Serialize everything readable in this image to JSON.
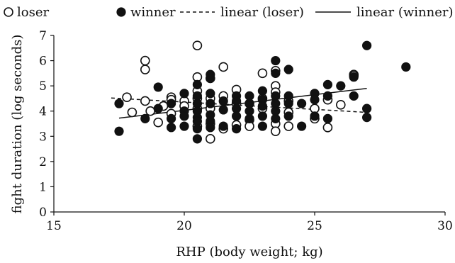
{
  "chart_data": {
    "type": "scatter",
    "xlabel": "RHP (body weight; kg)",
    "ylabel": "fight duration (log seconds)",
    "xlim": [
      15,
      30
    ],
    "ylim": [
      0,
      7
    ],
    "xticks": [
      "15",
      "20",
      "25",
      "30"
    ],
    "yticks": [
      "0",
      "1",
      "2",
      "3",
      "4",
      "5",
      "6",
      "7"
    ],
    "grid": false,
    "legend_position": "top",
    "legend": [
      {
        "label": "loser",
        "marker": "open-circle"
      },
      {
        "label": "winner",
        "marker": "filled-circle"
      },
      {
        "label": "linear (loser)",
        "marker": "dashed-line"
      },
      {
        "label": "linear (winner)",
        "marker": "solid-line"
      }
    ],
    "series": [
      {
        "name": "loser",
        "marker": "open-circle",
        "points": [
          [
            17.8,
            4.55
          ],
          [
            18.0,
            3.95
          ],
          [
            18.5,
            6.0
          ],
          [
            18.5,
            5.65
          ],
          [
            18.5,
            4.4
          ],
          [
            18.7,
            4.0
          ],
          [
            19.0,
            3.55
          ],
          [
            19.2,
            4.2
          ],
          [
            19.5,
            4.55
          ],
          [
            19.5,
            4.45
          ],
          [
            19.5,
            3.9
          ],
          [
            20.0,
            4.4
          ],
          [
            20.0,
            4.2
          ],
          [
            20.5,
            6.6
          ],
          [
            20.5,
            5.35
          ],
          [
            20.5,
            4.8
          ],
          [
            20.5,
            4.5
          ],
          [
            20.5,
            4.1
          ],
          [
            20.5,
            3.4
          ],
          [
            21.0,
            5.3
          ],
          [
            21.0,
            4.5
          ],
          [
            21.0,
            4.1
          ],
          [
            21.0,
            3.5
          ],
          [
            21.0,
            2.9
          ],
          [
            21.5,
            5.75
          ],
          [
            21.5,
            4.6
          ],
          [
            21.5,
            3.3
          ],
          [
            22.0,
            4.85
          ],
          [
            22.0,
            4.3
          ],
          [
            22.0,
            3.45
          ],
          [
            22.5,
            4.3
          ],
          [
            22.5,
            3.65
          ],
          [
            22.5,
            3.4
          ],
          [
            23.0,
            5.5
          ],
          [
            23.0,
            4.5
          ],
          [
            23.0,
            4.1
          ],
          [
            23.5,
            5.6
          ],
          [
            23.5,
            5.0
          ],
          [
            23.5,
            4.75
          ],
          [
            23.5,
            3.5
          ],
          [
            23.5,
            3.2
          ],
          [
            24.0,
            4.4
          ],
          [
            24.0,
            3.95
          ],
          [
            24.0,
            3.4
          ],
          [
            25.0,
            4.1
          ],
          [
            25.0,
            3.7
          ],
          [
            25.5,
            4.45
          ],
          [
            25.5,
            3.35
          ],
          [
            26.0,
            4.25
          ],
          [
            26.5,
            5.45
          ],
          [
            26.5,
            5.4
          ]
        ]
      },
      {
        "name": "winner",
        "marker": "filled-circle",
        "points": [
          [
            17.5,
            4.3
          ],
          [
            17.5,
            3.2
          ],
          [
            18.5,
            3.7
          ],
          [
            19.0,
            4.95
          ],
          [
            19.0,
            4.1
          ],
          [
            19.5,
            4.3
          ],
          [
            19.5,
            3.7
          ],
          [
            19.5,
            3.35
          ],
          [
            20.0,
            4.7
          ],
          [
            20.0,
            4.0
          ],
          [
            20.0,
            3.8
          ],
          [
            20.0,
            3.4
          ],
          [
            20.5,
            5.05
          ],
          [
            20.5,
            4.6
          ],
          [
            20.5,
            4.3
          ],
          [
            20.5,
            4.0
          ],
          [
            20.5,
            3.75
          ],
          [
            20.5,
            3.6
          ],
          [
            20.5,
            3.3
          ],
          [
            20.5,
            2.9
          ],
          [
            21.0,
            5.45
          ],
          [
            21.0,
            5.3
          ],
          [
            21.0,
            4.7
          ],
          [
            21.0,
            4.3
          ],
          [
            21.0,
            3.85
          ],
          [
            21.0,
            3.6
          ],
          [
            21.0,
            3.35
          ],
          [
            21.5,
            4.4
          ],
          [
            21.5,
            4.05
          ],
          [
            21.5,
            3.4
          ],
          [
            22.0,
            4.6
          ],
          [
            22.0,
            4.4
          ],
          [
            22.0,
            4.1
          ],
          [
            22.0,
            3.8
          ],
          [
            22.0,
            3.3
          ],
          [
            22.5,
            4.6
          ],
          [
            22.5,
            4.3
          ],
          [
            22.5,
            4.0
          ],
          [
            22.5,
            3.7
          ],
          [
            23.0,
            4.8
          ],
          [
            23.0,
            4.45
          ],
          [
            23.0,
            4.2
          ],
          [
            23.0,
            3.8
          ],
          [
            23.0,
            3.4
          ],
          [
            23.5,
            6.0
          ],
          [
            23.5,
            5.5
          ],
          [
            23.5,
            4.6
          ],
          [
            23.5,
            4.3
          ],
          [
            23.5,
            4.0
          ],
          [
            23.5,
            3.7
          ],
          [
            24.0,
            5.65
          ],
          [
            24.0,
            4.6
          ],
          [
            24.0,
            4.3
          ],
          [
            24.0,
            3.8
          ],
          [
            24.5,
            4.3
          ],
          [
            24.5,
            3.4
          ],
          [
            25.0,
            4.7
          ],
          [
            25.0,
            4.45
          ],
          [
            25.0,
            3.8
          ],
          [
            25.5,
            5.05
          ],
          [
            25.5,
            4.6
          ],
          [
            25.5,
            3.7
          ],
          [
            26.0,
            5.0
          ],
          [
            26.5,
            5.35
          ],
          [
            26.5,
            4.6
          ],
          [
            27.0,
            6.6
          ],
          [
            27.0,
            4.1
          ],
          [
            27.0,
            3.75
          ],
          [
            28.5,
            5.75
          ]
        ]
      },
      {
        "name": "linear (loser)",
        "marker": "dashed-line",
        "line": [
          [
            17.2,
            4.52
          ],
          [
            27.0,
            3.95
          ]
        ]
      },
      {
        "name": "linear (winner)",
        "marker": "solid-line",
        "line": [
          [
            17.5,
            3.72
          ],
          [
            27.0,
            4.9
          ]
        ]
      }
    ]
  }
}
